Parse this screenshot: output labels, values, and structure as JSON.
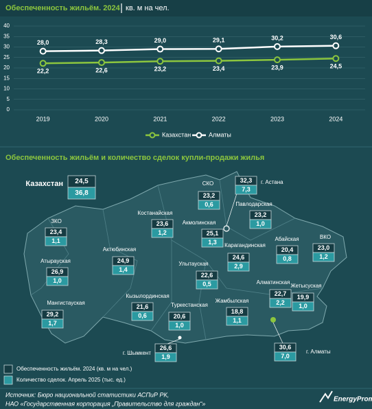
{
  "chart_data": [
    {
      "type": "line",
      "title": "Обеспеченность жильём. 2024",
      "subtitle": "кв. м на чел.",
      "categories": [
        "2019",
        "2020",
        "2021",
        "2022",
        "2023",
        "2024"
      ],
      "series": [
        {
          "name": "Казахстан",
          "color": "#8cc63e",
          "values": [
            22.2,
            22.6,
            23.2,
            23.4,
            23.9,
            24.5
          ],
          "value_labels": [
            "22,2",
            "22,6",
            "23,2",
            "23,4",
            "23,9",
            "24,5"
          ]
        },
        {
          "name": "Алматы",
          "color": "#ffffff",
          "values": [
            28.0,
            28.3,
            29.0,
            29.1,
            30.2,
            30.6
          ],
          "value_labels": [
            "28,0",
            "28,3",
            "29,0",
            "29,1",
            "30,2",
            "30,6"
          ]
        }
      ],
      "ylim": [
        0,
        40
      ],
      "yticks": [
        0,
        5,
        10,
        15,
        20,
        25,
        30,
        35,
        40
      ],
      "grid": true,
      "legend": "bottom"
    },
    {
      "type": "map",
      "title": "Обеспеченность жильём и количество сделок купли-продажи жилья",
      "categories": [
        "Казахстан",
        "СКО",
        "г. Астана",
        "Павлодарская",
        "Костанайская",
        "Акмолинская",
        "ЗКО",
        "Абайская",
        "ВКО",
        "Карагандинская",
        "Актюбинская",
        "Атырауская",
        "Улытауская",
        "Алматинская",
        "Жетысуская",
        "Кызылординская",
        "Мангистауская",
        "Туркестанская",
        "Жамбылская",
        "г. Шымкент",
        "г. Алматы"
      ],
      "series": [
        {
          "name": "Обеспеченность жильём. 2024 (кв. м на чел.)",
          "color": "#163c43",
          "values": [
            24.5,
            23.2,
            32.3,
            23.2,
            23.6,
            25.1,
            23.4,
            20.4,
            23.0,
            24.6,
            24.9,
            26.9,
            22.6,
            22.7,
            19.9,
            21.6,
            29.2,
            20.6,
            18.8,
            26.6,
            30.6
          ],
          "value_labels": [
            "24,5",
            "23,2",
            "32,3",
            "23,2",
            "23,6",
            "25,1",
            "23,4",
            "20,4",
            "23,0",
            "24,6",
            "24,9",
            "26,9",
            "22,6",
            "22,7",
            "19,9",
            "21,6",
            "29,2",
            "20,6",
            "18,8",
            "26,6",
            "30,6"
          ]
        },
        {
          "name": "Количество сделок. Апрель 2025 (тыс. ед.)",
          "color": "#2b9aa1",
          "values": [
            36.8,
            0.6,
            7.3,
            1.0,
            1.2,
            1.3,
            1.1,
            0.8,
            1.2,
            2.9,
            1.4,
            1.0,
            0.5,
            2.2,
            1.0,
            0.6,
            1.7,
            1.0,
            1.1,
            1.9,
            7.0
          ],
          "value_labels": [
            "36,8",
            "0,6",
            "7,3",
            "1,0",
            "1,2",
            "1,3",
            "1,1",
            "0,8",
            "1,2",
            "2,9",
            "1,4",
            "1,0",
            "0,5",
            "2,2",
            "1,0",
            "0,6",
            "1,7",
            "1,0",
            "1,1",
            "1,9",
            "7,0"
          ]
        }
      ]
    }
  ],
  "footer": {
    "source": [
      "Источник: Бюро национальной статистики АСПиР РК,",
      "НАО «Государственная корпорация „Правительство для граждан“»"
    ],
    "logo": "EnergyProm"
  }
}
